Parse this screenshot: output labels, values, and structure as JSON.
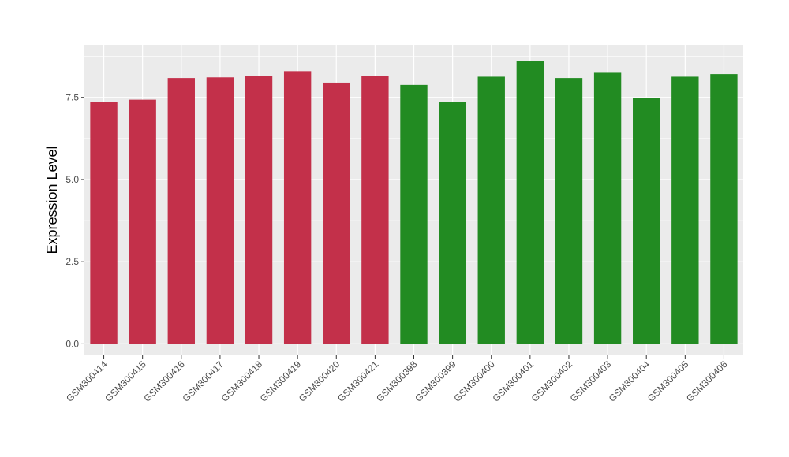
{
  "chart_data": {
    "type": "bar",
    "title": "",
    "xlabel": "",
    "ylabel": "Expression Level",
    "ylim": [
      -0.35,
      9.1
    ],
    "yticks": [
      0.0,
      2.5,
      5.0,
      7.5
    ],
    "ytick_labels": [
      "0.0",
      "2.5",
      "5.0",
      "7.5"
    ],
    "grid": true,
    "legend": "none",
    "categories": [
      "GSM300414",
      "GSM300415",
      "GSM300416",
      "GSM300417",
      "GSM300418",
      "GSM300419",
      "GSM300420",
      "GSM300421",
      "GSM300398",
      "GSM300399",
      "GSM300400",
      "GSM300401",
      "GSM300402",
      "GSM300403",
      "GSM300404",
      "GSM300405",
      "GSM300406"
    ],
    "values": [
      7.36,
      7.43,
      8.09,
      8.11,
      8.16,
      8.3,
      7.95,
      8.16,
      7.88,
      7.36,
      8.13,
      8.61,
      8.09,
      8.25,
      7.48,
      8.13,
      8.21
    ],
    "group_colors": [
      "#C3304A",
      "#C3304A",
      "#C3304A",
      "#C3304A",
      "#C3304A",
      "#C3304A",
      "#C3304A",
      "#C3304A",
      "#228B22",
      "#228B22",
      "#228B22",
      "#228B22",
      "#228B22",
      "#228B22",
      "#228B22",
      "#228B22",
      "#228B22"
    ],
    "panel_background": "#EBEBEB"
  }
}
